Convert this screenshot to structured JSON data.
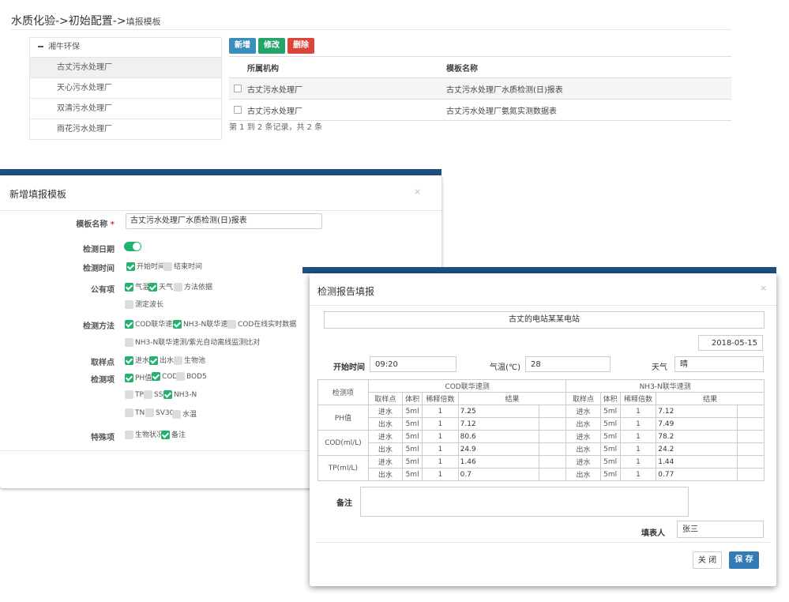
{
  "breadcrumb": {
    "main": "水质化验->初始配置->",
    "sub": "填报模板"
  },
  "tree": {
    "root": "湘牛环保",
    "nodes": [
      "古丈污水处理厂",
      "天心污水处理厂",
      "双清污水处理厂",
      "雨花污水处理厂"
    ]
  },
  "toolbar": {
    "add": "新增",
    "edit": "修改",
    "delete": "删除"
  },
  "grid": {
    "headers": [
      "所属机构",
      "模板名称"
    ],
    "rows": [
      {
        "org": "古丈污水处理厂",
        "template": "古丈污水处理厂水质检测(日)报表"
      },
      {
        "org": "古丈污水处理厂",
        "template": "古丈污水处理厂氨氮实测数据表"
      }
    ],
    "pageinfo": "第 1 到 2 条记录，共 2 条"
  },
  "modal1": {
    "title": "新增填报模板",
    "close": "×",
    "fields": {
      "template_name_label": "模板名称",
      "required": "*",
      "template_name_value": "古丈污水处理厂水质检测(日)报表",
      "date_label": "检测日期",
      "time_label": "检测时间",
      "time_opts": [
        "开始时间",
        "结束时间"
      ],
      "public_label": "公有项",
      "public_opts": [
        "气温",
        "天气",
        "方法依据",
        "测定波长"
      ],
      "method_label": "检测方法",
      "method_opts": [
        "COD联华速测",
        "NH3-N联华速测",
        "COD在线实时数据",
        "NH3-N联华速测/紫光自动离线监测比对"
      ],
      "sample_label": "取样点",
      "sample_opts": [
        "进水",
        "出水",
        "生物池"
      ],
      "item_label": "检测项",
      "item_opts": [
        "PH值",
        "COD",
        "BOD5",
        "TP",
        "SS",
        "NH3-N",
        "TN",
        "SV30",
        "水温"
      ],
      "special_label": "特殊项",
      "special_opts": [
        "生物状况",
        "备注"
      ]
    }
  },
  "modal2": {
    "title": "检测报告填报",
    "close": "×",
    "station": "古丈的电站某某电站",
    "date": "2018-05-15",
    "start_label": "开始时间",
    "start_value": "09:20",
    "temp_label": "气温(℃)",
    "temp_value": "28",
    "weather_label": "天气",
    "weather_value": "晴",
    "table": {
      "item_header": "检测项",
      "group1": "COD联华速测",
      "group2": "NH3-N联华速测",
      "subheaders": [
        "取样点",
        "体积",
        "稀释倍数",
        "结果"
      ],
      "rows": [
        {
          "item": "PH值",
          "pt1": "进水",
          "vol1": "5ml",
          "dil1": "1",
          "res1": "7.25",
          "pt2": "进水",
          "vol2": "5ml",
          "dil2": "1",
          "res2": "7.12"
        },
        {
          "item": "",
          "pt1": "出水",
          "vol1": "5ml",
          "dil1": "1",
          "res1": "7.12",
          "pt2": "出水",
          "vol2": "5ml",
          "dil2": "1",
          "res2": "7.49"
        },
        {
          "item": "COD(ml/L)",
          "pt1": "进水",
          "vol1": "5ml",
          "dil1": "1",
          "res1": "80.6",
          "pt2": "进水",
          "vol2": "5ml",
          "dil2": "1",
          "res2": "78.2"
        },
        {
          "item": "",
          "pt1": "出水",
          "vol1": "5ml",
          "dil1": "1",
          "res1": "24.9",
          "pt2": "出水",
          "vol2": "5ml",
          "dil2": "1",
          "res2": "24.2"
        },
        {
          "item": "TP(ml/L)",
          "pt1": "进水",
          "vol1": "5ml",
          "dil1": "1",
          "res1": "1.46",
          "pt2": "进水",
          "vol2": "5ml",
          "dil2": "1",
          "res2": "1.44"
        },
        {
          "item": "",
          "pt1": "出水",
          "vol1": "5ml",
          "dil1": "1",
          "res1": "0.7",
          "pt2": "出水",
          "vol2": "5ml",
          "dil2": "1",
          "res2": "0.77"
        }
      ]
    },
    "remark_label": "备注",
    "filler_label": "填表人",
    "filler_value": "张三",
    "btn_close": "关 闭",
    "btn_save": "保 存"
  }
}
